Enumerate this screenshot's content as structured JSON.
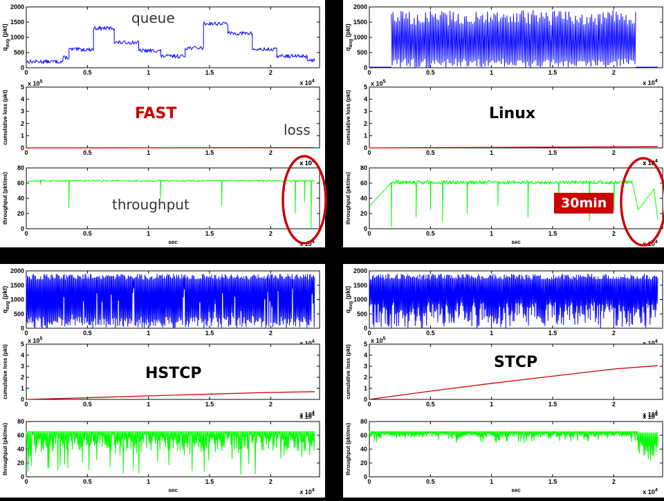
{
  "chart_data": [
    {
      "name": "FAST",
      "label": "FAST",
      "label_color": "#cc0000",
      "annotations": {
        "queue": "queue",
        "loss": "loss",
        "throughput": "throughput"
      },
      "queue": {
        "x_exp": "x 10",
        "x_exp_sup": "4",
        "ylabel": "q",
        "ylabel_sub": "avg",
        "ylabel_rest": " (pkt)",
        "yticks": [
          "0",
          "500",
          "1000",
          "1500",
          "2000"
        ],
        "xticks": [
          "0",
          "0.5",
          "1",
          "1.5",
          "2"
        ],
        "ylim": [
          0,
          2000
        ],
        "color": "#0000ff",
        "segments": [
          [
            0,
            200
          ],
          [
            0.3,
            330
          ],
          [
            0.35,
            600
          ],
          [
            0.55,
            1300
          ],
          [
            0.72,
            830
          ],
          [
            0.92,
            560
          ],
          [
            1.1,
            380
          ],
          [
            1.3,
            650
          ],
          [
            1.45,
            1450
          ],
          [
            1.65,
            1130
          ],
          [
            1.85,
            600
          ],
          [
            2.05,
            380
          ],
          [
            2.3,
            250
          ],
          [
            2.36,
            200
          ]
        ]
      },
      "loss": {
        "ylabel": "cumulative loss (pkt)",
        "exp": "x 10",
        "exp_sup": "5",
        "yticks": [
          "0",
          "1",
          "2",
          "3",
          "4",
          "5"
        ],
        "xticks": [
          "0",
          "0.5",
          "1",
          "1.5",
          "2"
        ],
        "x_exp": "x 10",
        "x_exp_sup": "4",
        "ylim": [
          0,
          5
        ],
        "color": "#cc0000",
        "x": [
          0,
          2.36
        ],
        "y": [
          0,
          0.02
        ]
      },
      "throughput": {
        "ylabel": "throughput (pkt/ms)",
        "xlabel": "sec",
        "x_exp": "x 10",
        "x_exp_sup": "4",
        "yticks": [
          "0",
          "20",
          "40",
          "60",
          "80"
        ],
        "xticks": [
          "0",
          "0.5",
          "1",
          "1.5",
          "2"
        ],
        "ylim": [
          0,
          80
        ],
        "color": "#00ff00",
        "base": 63,
        "noise": 2,
        "dips": [
          [
            0.12,
            58
          ],
          [
            0.35,
            27
          ],
          [
            1.1,
            40
          ],
          [
            1.6,
            30
          ],
          [
            2.2,
            20
          ],
          [
            2.28,
            35
          ],
          [
            2.33,
            0
          ]
        ],
        "start": 63
      }
    },
    {
      "name": "Linux",
      "label": "Linux",
      "label_color": "#000000",
      "badge": "30min",
      "queue": {
        "x_exp": "x 10",
        "x_exp_sup": "4",
        "ylabel": "q",
        "ylabel_sub": "avg",
        "ylabel_rest": " (pkt)",
        "yticks": [
          "0",
          "500",
          "1000",
          "1500",
          "2000"
        ],
        "xticks": [
          "0",
          "0.5",
          "1",
          "1.5",
          "2"
        ],
        "ylim": [
          0,
          2000
        ],
        "color": "#0000ff",
        "active": [
          0.18,
          2.18
        ],
        "peak": 1900
      },
      "loss": {
        "ylabel": "cumulative loss (pkt)",
        "exp": "x 10",
        "exp_sup": "5",
        "yticks": [
          "0",
          "1",
          "2",
          "3",
          "4",
          "5"
        ],
        "xticks": [
          "0",
          "0.5",
          "1",
          "1.5",
          "2"
        ],
        "x_exp": "x 10",
        "x_exp_sup": "4",
        "ylim": [
          0,
          5
        ],
        "color": "#cc0000",
        "x": [
          0,
          2.36
        ],
        "y": [
          0,
          0.1
        ]
      },
      "throughput": {
        "ylabel": "throughput (pkt/ms)",
        "xlabel": "sec",
        "x_exp": "x 10",
        "x_exp_sup": "4",
        "yticks": [
          "0",
          "20",
          "40",
          "60",
          "80"
        ],
        "xticks": [
          "0",
          "0.5",
          "1",
          "1.5",
          "2"
        ],
        "ylim": [
          0,
          80
        ],
        "color": "#00ff00",
        "base": 61,
        "noise": 5,
        "ramp": [
          [
            0,
            28
          ],
          [
            0.18,
            60
          ]
        ],
        "tail": [
          [
            2.15,
            62
          ],
          [
            2.2,
            25
          ],
          [
            2.33,
            52
          ],
          [
            2.36,
            12
          ]
        ],
        "dips": [
          [
            0.18,
            2
          ],
          [
            0.38,
            15
          ],
          [
            0.5,
            25
          ],
          [
            0.6,
            10
          ],
          [
            0.8,
            20
          ],
          [
            1.05,
            30
          ],
          [
            1.3,
            15
          ],
          [
            1.55,
            20
          ],
          [
            1.8,
            10
          ],
          [
            2.0,
            25
          ]
        ]
      }
    },
    {
      "name": "HSTCP",
      "label": "HSTCP",
      "label_color": "#000000",
      "queue": {
        "x_exp": "x 10",
        "x_exp_sup": "4",
        "ylabel": "q",
        "ylabel_sub": "avg",
        "ylabel_rest": " (pkt)",
        "yticks": [
          "0",
          "500",
          "1000",
          "1500",
          "2000"
        ],
        "xticks": [
          "0",
          "0.5",
          "1",
          "1.5",
          "2"
        ],
        "ylim": [
          0,
          2000
        ],
        "color": "#0000ff",
        "active": [
          0.0,
          2.36
        ],
        "peak": 1900,
        "dense": true
      },
      "loss": {
        "ylabel": "cumulative loss (pkt)",
        "exp": "x 10",
        "exp_sup": "5",
        "yticks": [
          "0",
          "1",
          "2",
          "3",
          "4",
          "5"
        ],
        "xticks": [
          "0",
          "0.5",
          "1",
          "1.5",
          "2"
        ],
        "x_exp": "x 10",
        "x_exp_sup": "4",
        "ylim": [
          0,
          5
        ],
        "color": "#cc0000",
        "x": [
          0,
          0.5,
          1.0,
          1.5,
          2.0,
          2.36
        ],
        "y": [
          0,
          0.15,
          0.32,
          0.48,
          0.63,
          0.7
        ]
      },
      "throughput": {
        "ylabel": "throughput (pkt/ms)",
        "xlabel": "sec",
        "x_exp": "x 10",
        "x_exp_sup": "4",
        "yticks": [
          "0",
          "20",
          "40",
          "60",
          "80"
        ],
        "xticks": [
          "0",
          "0.5",
          "1",
          "1.5",
          "2"
        ],
        "ylim": [
          0,
          80
        ],
        "color": "#00ff00",
        "base": 62,
        "noise": 25,
        "dense": true
      }
    },
    {
      "name": "STCP",
      "label": "STCP",
      "label_color": "#000000",
      "queue": {
        "x_exp": "x 10",
        "x_exp_sup": "4",
        "ylabel": "q",
        "ylabel_sub": "avg",
        "ylabel_rest": " (pkt)",
        "yticks": [
          "0",
          "500",
          "1000",
          "1500",
          "2000"
        ],
        "xticks": [
          "0",
          "0.5",
          "1",
          "1.5",
          "2"
        ],
        "ylim": [
          0,
          2000
        ],
        "color": "#0000ff",
        "active": [
          0.0,
          2.36
        ],
        "peak": 1900,
        "dense": true,
        "solid": true
      },
      "loss": {
        "ylabel": "cumulative loss (pkt)",
        "exp": "x 10",
        "exp_sup": "5",
        "yticks": [
          "0",
          "1",
          "2",
          "3",
          "4",
          "5"
        ],
        "xticks": [
          "0",
          "0.5",
          "1",
          "1.5",
          "2"
        ],
        "x_exp": "x 10",
        "x_exp_sup": "4",
        "ylim": [
          0,
          5
        ],
        "color": "#cc0000",
        "x": [
          0,
          0.5,
          1.0,
          1.5,
          2.0,
          2.36
        ],
        "y": [
          0,
          0.75,
          1.45,
          2.1,
          2.75,
          3.05
        ]
      },
      "throughput": {
        "ylabel": "throughput (pkt/ms)",
        "xlabel": "sec",
        "x_exp": "x 10",
        "x_exp_sup": "4",
        "yticks": [
          "0",
          "20",
          "40",
          "60",
          "80"
        ],
        "xticks": [
          "0",
          "0.5",
          "1",
          "1.5",
          "2"
        ],
        "ylim": [
          0,
          80
        ],
        "color": "#00ff00",
        "base": 63,
        "noise": 6,
        "dense": true,
        "tail_noisy": true
      }
    }
  ]
}
